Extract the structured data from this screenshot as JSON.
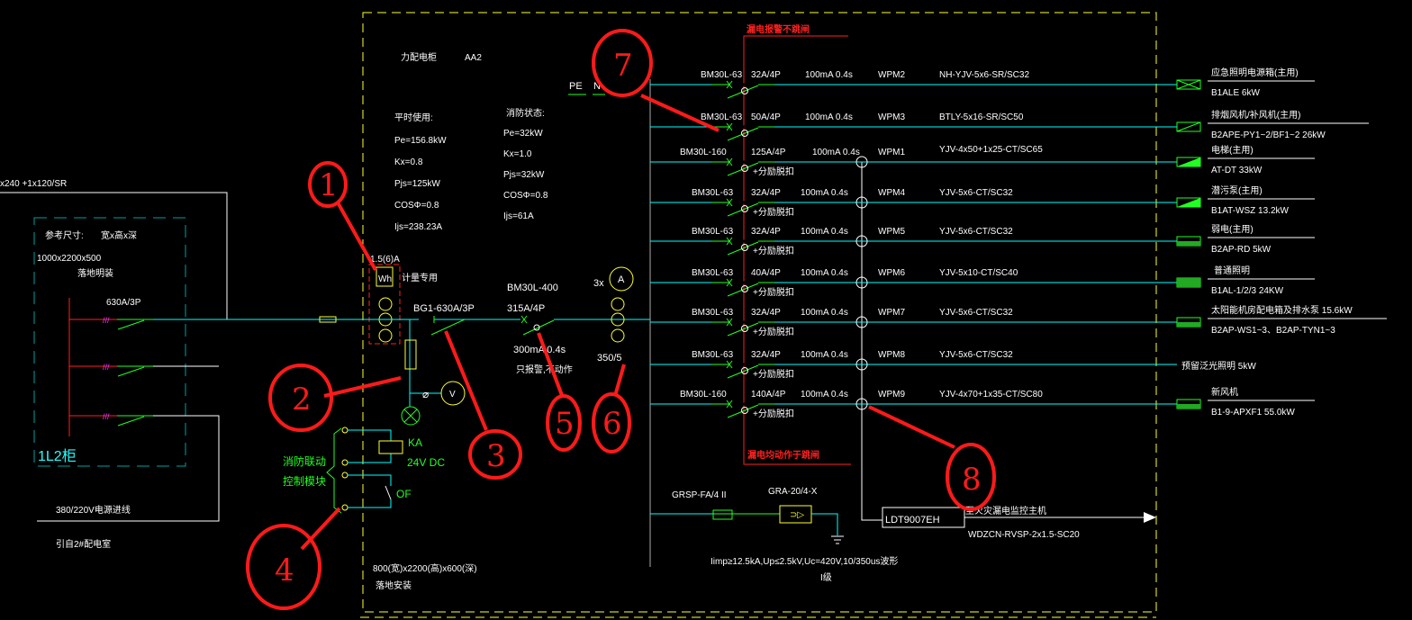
{
  "colors": {
    "background": "#000000",
    "bus": "#00ffff",
    "breaker": "#22ff22",
    "frame": "#ffff33",
    "alarm": "#ff2020",
    "text": "#ffffff",
    "annotation": "#ff1a1a"
  },
  "incoming": {
    "cable": "x240 +1x120/SR",
    "ref_size_label": "参考尺寸:",
    "ref_size_dims": "宽x高x深",
    "ref_size_value": "1000x2200x500",
    "ref_install": "落地明装",
    "breaker": "630A/3P",
    "cabinet_name": "1L2柜",
    "source": "380/220V电源进线",
    "from": "引自2#配电室"
  },
  "panel": {
    "title": "力配电柜",
    "code": "AA2",
    "pe": "PE",
    "n": "N",
    "normal_title": "平时使用:",
    "normal": [
      "Pe=156.8kW",
      "Kx=0.8",
      "Pjs=125kW",
      "COSΦ=0.8",
      "Ijs=238.23A"
    ],
    "fire_title": "消防状态:",
    "fire": [
      "Pe=32kW",
      "Kx=1.0",
      "Pjs=32kW",
      "COSΦ=0.8",
      "Ijs=61A"
    ],
    "meter_rating": "1.5(6)A",
    "meter_label": "Wh",
    "meter_note": "计量专用",
    "isolator": "BG1-630A/3P",
    "main_breaker": "BM30L-400",
    "main_rating": "315A/4P",
    "main_leak": "300mA 0.4s",
    "main_leak_note": "只报警,不动作",
    "ammeter_qty": "3x",
    "ammeter": "A",
    "ct_ratio": "350/5",
    "voltmeter": "V",
    "relay": "KA",
    "relay_voltage": "24V DC",
    "aux_contact": "OF",
    "fire_module": [
      "消防联动",
      "控制模块"
    ],
    "size": "800(宽)x2200(高)x600(深)",
    "install": "落地安装",
    "alarm_top": "漏电报警不跳闸",
    "alarm_bottom": "漏电均动作于跳闸"
  },
  "feeders": [
    {
      "breaker": "BM30L-63",
      "rating": "32A/4P",
      "leak": "100mA 0.4s",
      "circuit": "WPM2",
      "cable": "NH-YJV-5x6-SR/SC32",
      "shunt": "",
      "load": "应急照明电源箱(主用)",
      "load_id": "B1ALE  6kW",
      "symbol": "cross"
    },
    {
      "breaker": "BM30L-63",
      "rating": "50A/4P",
      "leak": "100mA 0.4s",
      "circuit": "WPM3",
      "cable": "BTLY-5x16-SR/SC50",
      "shunt": "",
      "load": "排烟风机/补风机(主用)",
      "load_id": "B2APE-PY1~2/BF1~2     26kW",
      "symbol": "diag"
    },
    {
      "breaker": "BM30L-160",
      "rating": "125A/4P",
      "leak": "100mA 0.4s",
      "circuit": "WPM1",
      "cable": "YJV-4x50+1x25-CT/SC65",
      "shunt": "+分励脱扣",
      "load": "电梯(主用)",
      "load_id": "AT-DT 33kW",
      "symbol": "tri"
    },
    {
      "breaker": "BM30L-63",
      "rating": "32A/4P",
      "leak": "100mA 0.4s",
      "circuit": "WPM4",
      "cable": "YJV-5x6-CT/SC32",
      "shunt": "+分励脱扣",
      "load": "潜污泵(主用)",
      "load_id": "B1AT-WSZ   13.2kW",
      "symbol": "tri"
    },
    {
      "breaker": "BM30L-63",
      "rating": "32A/4P",
      "leak": "100mA 0.4s",
      "circuit": "WPM5",
      "cable": "YJV-5x6-CT/SC32",
      "shunt": "+分励脱扣",
      "load": "弱电(主用)",
      "load_id": "B2AP-RD   5kW",
      "symbol": "half"
    },
    {
      "breaker": "BM30L-63",
      "rating": "40A/4P",
      "leak": "100mA 0.4s",
      "circuit": "WPM6",
      "cable": "YJV-5x10-CT/SC40",
      "shunt": "+分励脱扣",
      "load": "普通照明",
      "load_id": "B1AL-1/2/3   24KW",
      "symbol": "full"
    },
    {
      "breaker": "BM30L-63",
      "rating": "32A/4P",
      "leak": "100mA 0.4s",
      "circuit": "WPM7",
      "cable": "YJV-5x6-CT/SC32",
      "shunt": "+分励脱扣",
      "load": "太阳能机房配电箱及排水泵 15.6kW",
      "load_id": "B2AP-WS1~3、B2AP-TYN1~3",
      "symbol": "half"
    },
    {
      "breaker": "BM30L-63",
      "rating": "32A/4P",
      "leak": "100mA 0.4s",
      "circuit": "WPM8",
      "cable": "YJV-5x6-CT/SC32",
      "shunt": "+分励脱扣",
      "load": "预留泛光照明   5kW",
      "load_id": "",
      "symbol": "none"
    },
    {
      "breaker": "BM30L-160",
      "rating": "140A/4P",
      "leak": "100mA 0.4s",
      "circuit": "WPM9",
      "cable": "YJV-4x70+1x35-CT/SC80",
      "shunt": "+分励脱扣",
      "load": "新风机",
      "load_id": "B1-9-APXF1      55.0kW",
      "symbol": "half"
    }
  ],
  "spd": {
    "model": "GRSP-FA/4 II",
    "fuse": "GRA-20/4-X",
    "spec": "Iimp≥12.5kA,Up≤2.5kV,Uc=420V,10/350us波形",
    "class": "I级"
  },
  "monitor": {
    "device": "LDT9007EH",
    "target": "至火灾漏电监控主机",
    "cable": "WDZCN-RVSP-2x1.5-SC20"
  },
  "annotations": [
    "1",
    "2",
    "3",
    "4",
    "5",
    "6",
    "7",
    "8"
  ]
}
